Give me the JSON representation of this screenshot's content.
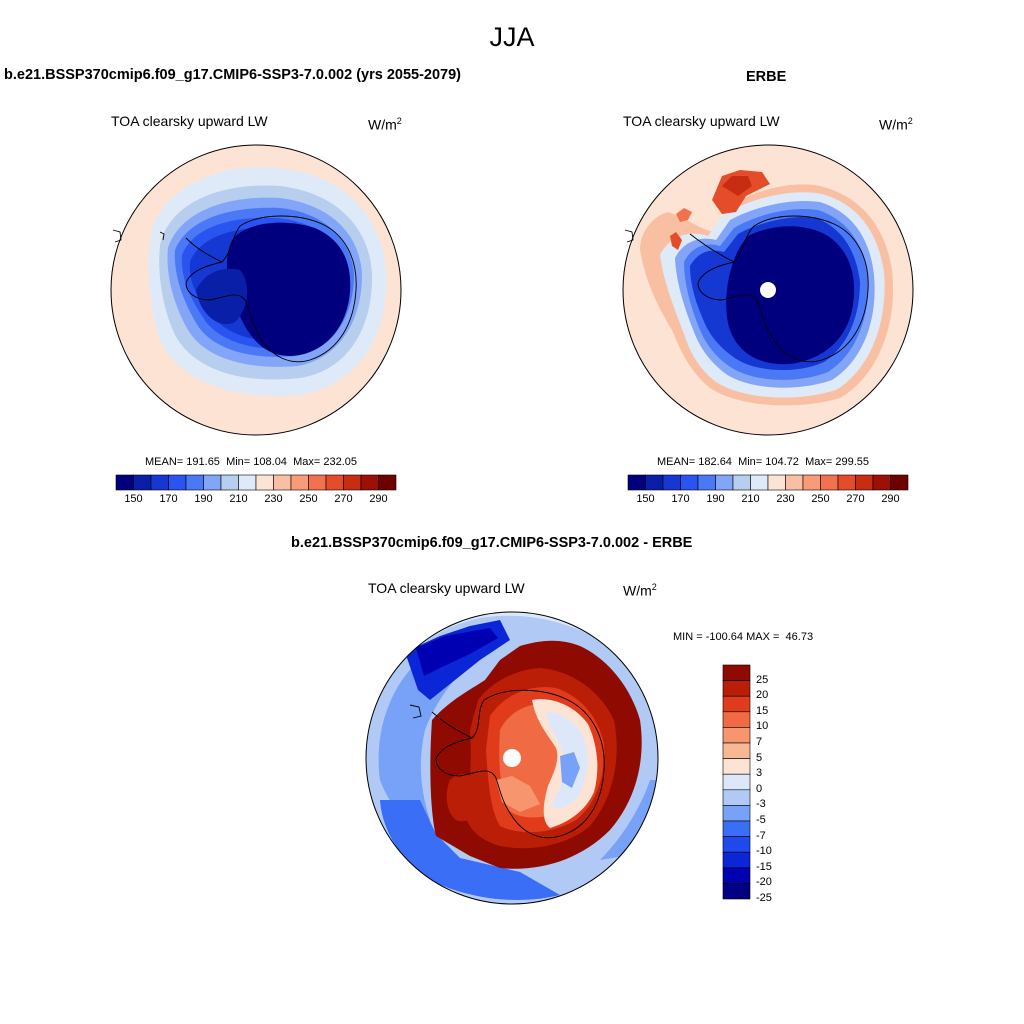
{
  "figure": {
    "season": "JJA"
  },
  "palettes": {
    "abs": [
      "#00007f",
      "#0a1fa8",
      "#1537d2",
      "#2a54ef",
      "#4b79f5",
      "#82a5f7",
      "#b7ceee",
      "#dfeaf9",
      "#fde3d4",
      "#f9bfa2",
      "#f79b78",
      "#f2724e",
      "#e54c2a",
      "#c62d13",
      "#9c1006",
      "#6e0000"
    ],
    "diff": [
      "#000080",
      "#0000b3",
      "#0a26d6",
      "#1f48ee",
      "#3b6ef7",
      "#78a2f8",
      "#b0c9f5",
      "#dce8f9",
      "#fde3d4",
      "#f9b894",
      "#f6956e",
      "#f06a44",
      "#e03c1c",
      "#bb1e06",
      "#8f0a00"
    ]
  },
  "panels": [
    {
      "id": "model",
      "title": "b.e21.BSSP370cmip6.f09_g17.CMIP6-SSP3-7.0.002 (yrs 2055-2079)",
      "variable": "TOA clearsky upward LW",
      "units_base": "W/m",
      "units_exp": "2",
      "stats": {
        "mean_label": "MEAN=",
        "mean": "191.65",
        "min_label": "Min=",
        "min": "108.04",
        "max_label": "Max=",
        "max": "232.05"
      }
    },
    {
      "id": "obs",
      "title": "ERBE",
      "variable": "TOA clearsky upward LW",
      "units_base": "W/m",
      "units_exp": "2",
      "stats": {
        "mean_label": "MEAN=",
        "mean": "182.64",
        "min_label": "Min=",
        "min": "104.72",
        "max_label": "Max=",
        "max": "299.55"
      }
    },
    {
      "id": "diff",
      "title": "b.e21.BSSP370cmip6.f09_g17.CMIP6-SSP3-7.0.002 - ERBE",
      "variable": "TOA clearsky upward LW",
      "units_base": "W/m",
      "units_exp": "2",
      "stats": {
        "min_label": "MIN =",
        "min": "-100.64",
        "max_label": "MAX =",
        "max": "46.73"
      }
    }
  ],
  "colorbars": {
    "abs_ticks": [
      "150",
      "170",
      "190",
      "210",
      "230",
      "250",
      "270",
      "290"
    ],
    "diff_ticks": [
      "25",
      "20",
      "15",
      "10",
      "7",
      "5",
      "3",
      "0",
      "-3",
      "-5",
      "-7",
      "-10",
      "-15",
      "-20",
      "-25"
    ]
  },
  "chart_data": [
    {
      "type": "heatmap",
      "projection": "south polar stereographic",
      "title": "b.e21.BSSP370cmip6.f09_g17.CMIP6-SSP3-7.0.002 (yrs 2055-2079)",
      "subtitle": "TOA clearsky upward LW",
      "units": "W/m2",
      "contour_levels": [
        150,
        160,
        170,
        180,
        190,
        200,
        210,
        220,
        230,
        240,
        250,
        260,
        270,
        280,
        290
      ],
      "mean": 191.65,
      "min": 108.04,
      "max": 232.05
    },
    {
      "type": "heatmap",
      "projection": "south polar stereographic",
      "title": "ERBE",
      "subtitle": "TOA clearsky upward LW",
      "units": "W/m2",
      "contour_levels": [
        150,
        160,
        170,
        180,
        190,
        200,
        210,
        220,
        230,
        240,
        250,
        260,
        270,
        280,
        290
      ],
      "mean": 182.64,
      "min": 104.72,
      "max": 299.55
    },
    {
      "type": "heatmap",
      "projection": "south polar stereographic",
      "title": "b.e21.BSSP370cmip6.f09_g17.CMIP6-SSP3-7.0.002 - ERBE",
      "subtitle": "TOA clearsky upward LW",
      "units": "W/m2",
      "contour_levels": [
        -25,
        -20,
        -15,
        -10,
        -7,
        -5,
        -3,
        0,
        3,
        5,
        7,
        10,
        15,
        20,
        25
      ],
      "min": -100.64,
      "max": 46.73
    }
  ]
}
